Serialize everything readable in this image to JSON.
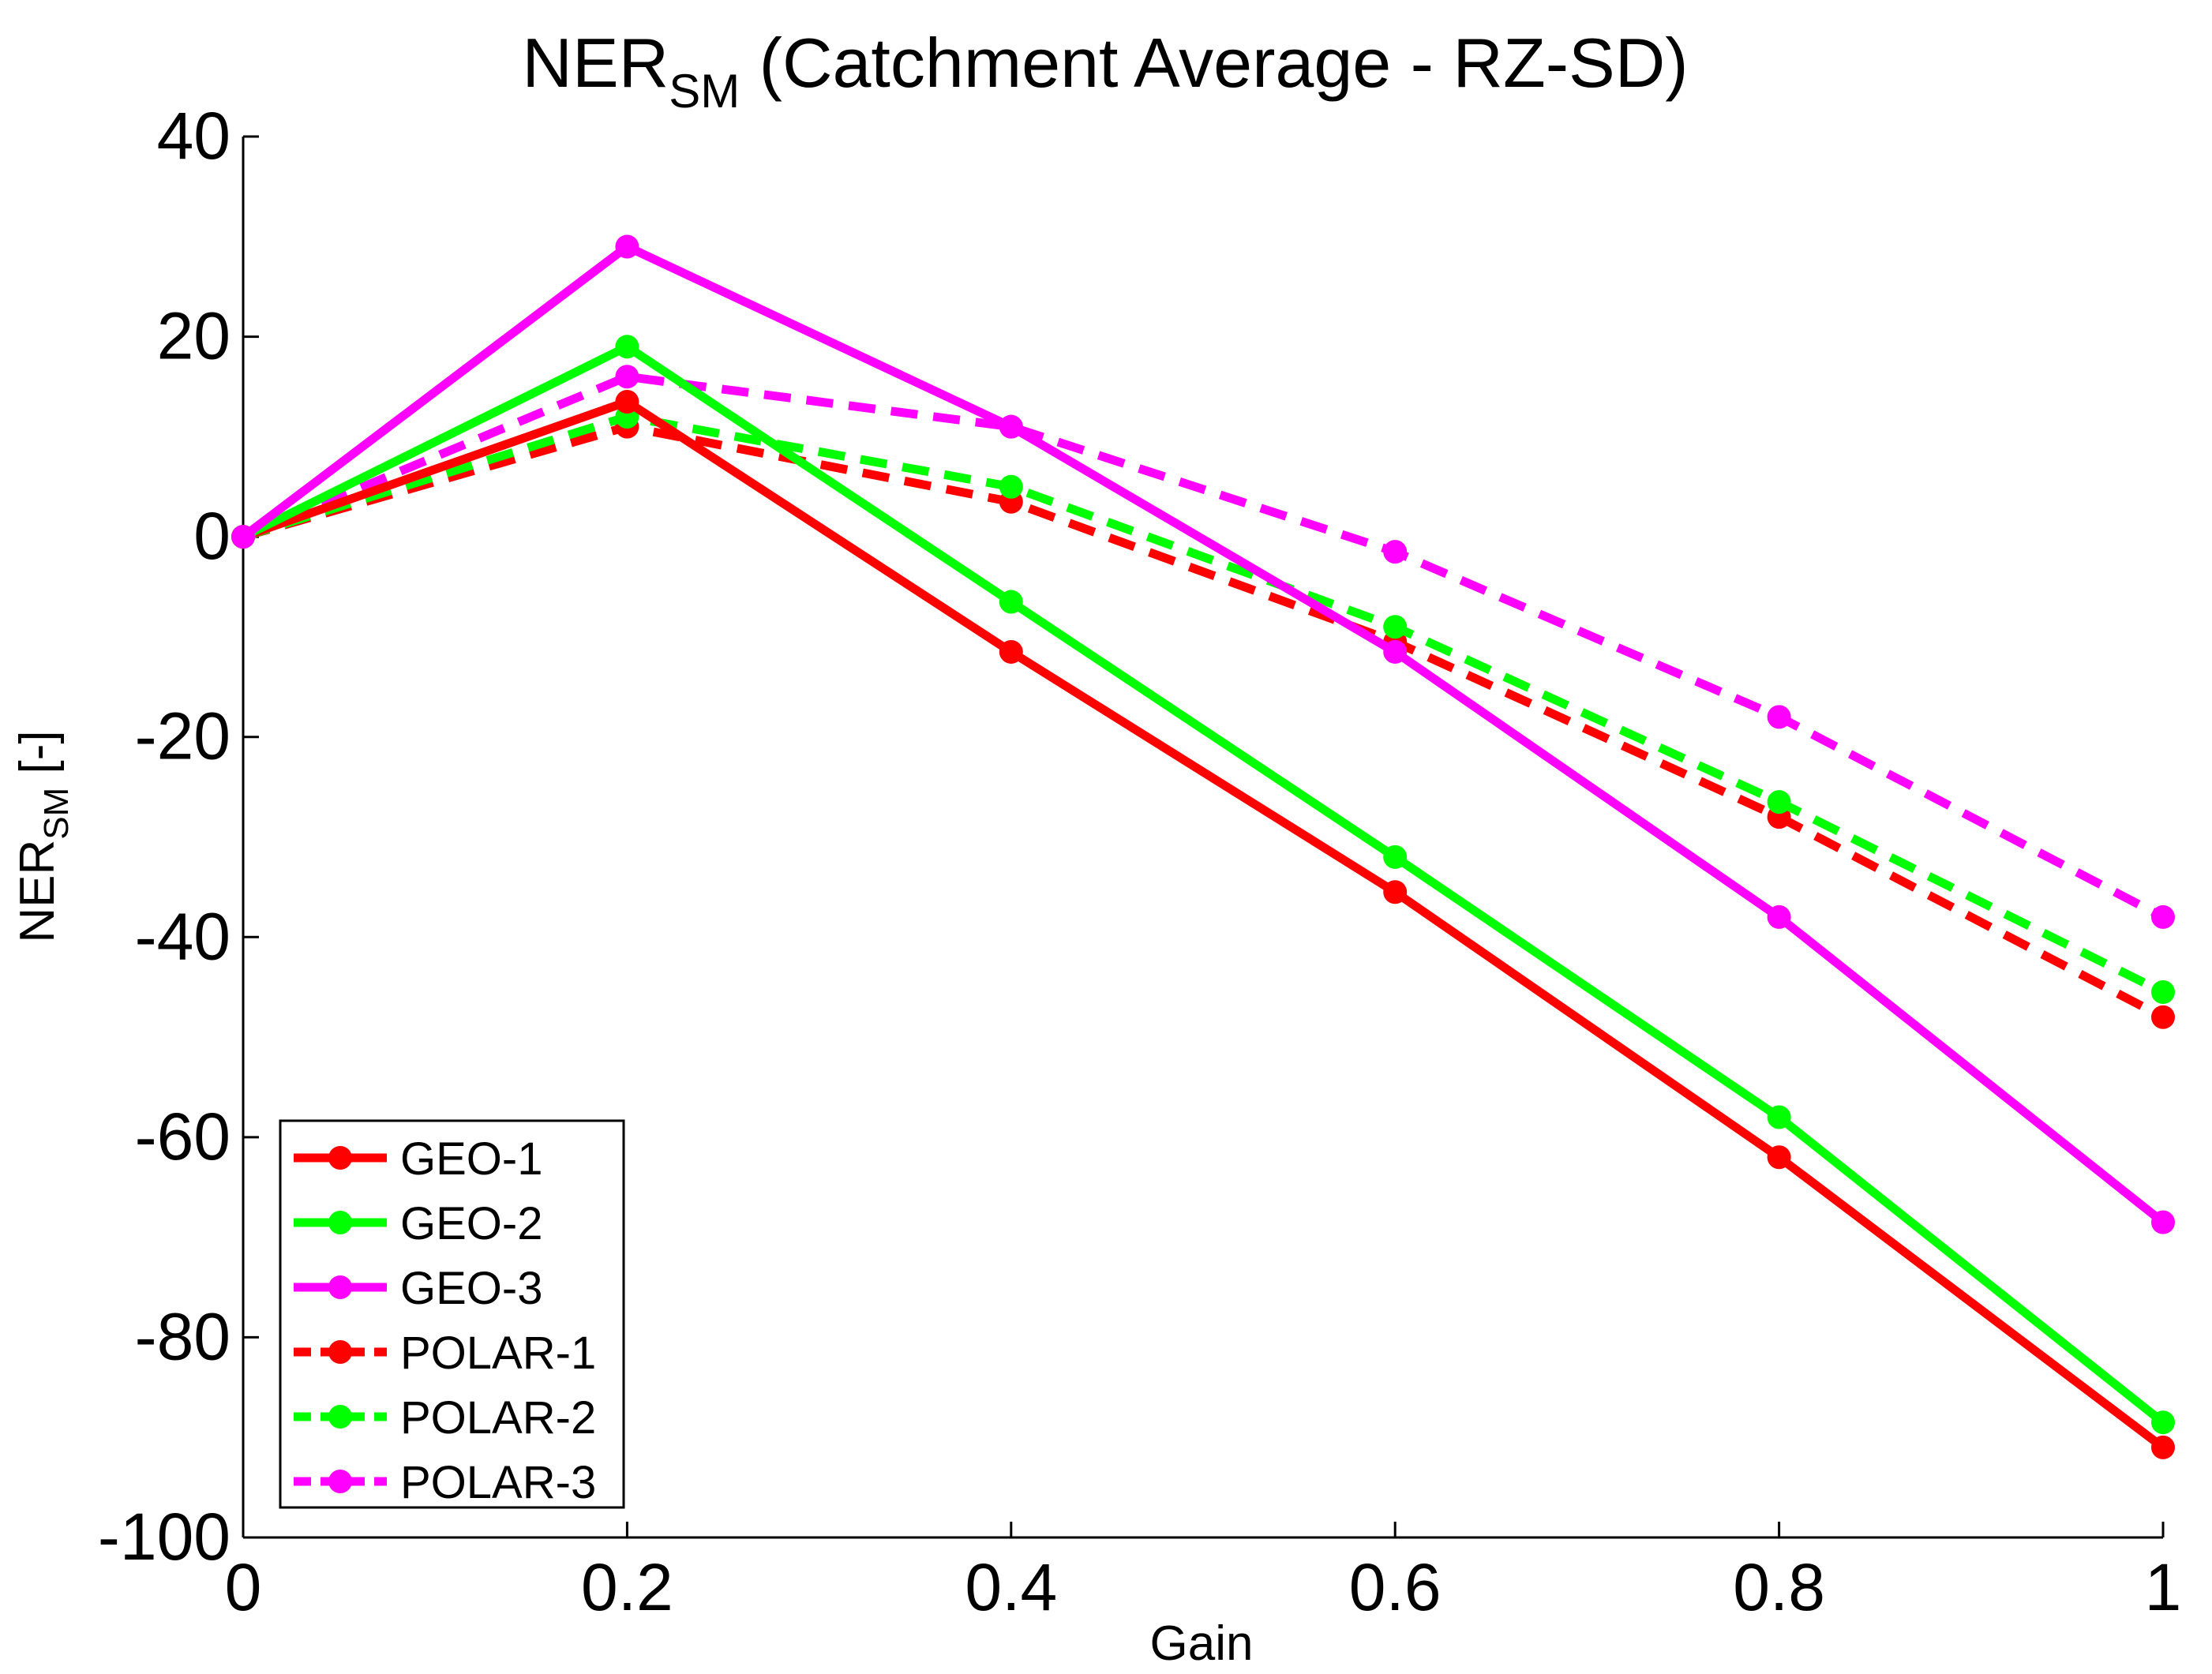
{
  "chart_data": {
    "type": "line",
    "title": {
      "main": "NER",
      "subscript": "SM",
      "rest": " (Catchment Average - RZ-SD)"
    },
    "xlabel": "Gain",
    "ylabel": {
      "main": "NER",
      "subscript": "SM",
      "rest": " [-]"
    },
    "xlim": [
      0,
      1
    ],
    "ylim": [
      -100,
      40
    ],
    "x_ticks": [
      0,
      0.2,
      0.4,
      0.6,
      0.8,
      1
    ],
    "x_tick_labels": [
      "0",
      "0.2",
      "0.4",
      "0.6",
      "0.8",
      "1"
    ],
    "y_ticks": [
      -100,
      -80,
      -60,
      -40,
      -20,
      0,
      20,
      40
    ],
    "y_tick_labels": [
      "-100",
      "-80",
      "-60",
      "-40",
      "-20",
      "0",
      "20",
      "40"
    ],
    "grid": false,
    "legend_position": "bottom-left",
    "x": [
      0,
      0.2,
      0.4,
      0.6,
      0.8,
      1
    ],
    "series": [
      {
        "name": "GEO-1",
        "color": "#ff0000",
        "style": "solid",
        "values": [
          0,
          13.5,
          -11.5,
          -35.5,
          -62,
          -91
        ]
      },
      {
        "name": "GEO-2",
        "color": "#00ff00",
        "style": "solid",
        "values": [
          0,
          19,
          -6.5,
          -32,
          -58,
          -88.5
        ]
      },
      {
        "name": "GEO-3",
        "color": "#ff00ff",
        "style": "solid",
        "values": [
          0,
          29,
          11,
          -11.5,
          -38,
          -68.5
        ]
      },
      {
        "name": "POLAR-1",
        "color": "#ff0000",
        "style": "dashed",
        "values": [
          0,
          11,
          3.5,
          -10.5,
          -28,
          -48
        ]
      },
      {
        "name": "POLAR-2",
        "color": "#00ff00",
        "style": "dashed",
        "values": [
          0,
          12,
          5,
          -9,
          -26.5,
          -45.5
        ]
      },
      {
        "name": "POLAR-3",
        "color": "#ff00ff",
        "style": "dashed",
        "values": [
          0,
          16,
          11,
          -1.5,
          -18,
          -38
        ]
      }
    ]
  }
}
